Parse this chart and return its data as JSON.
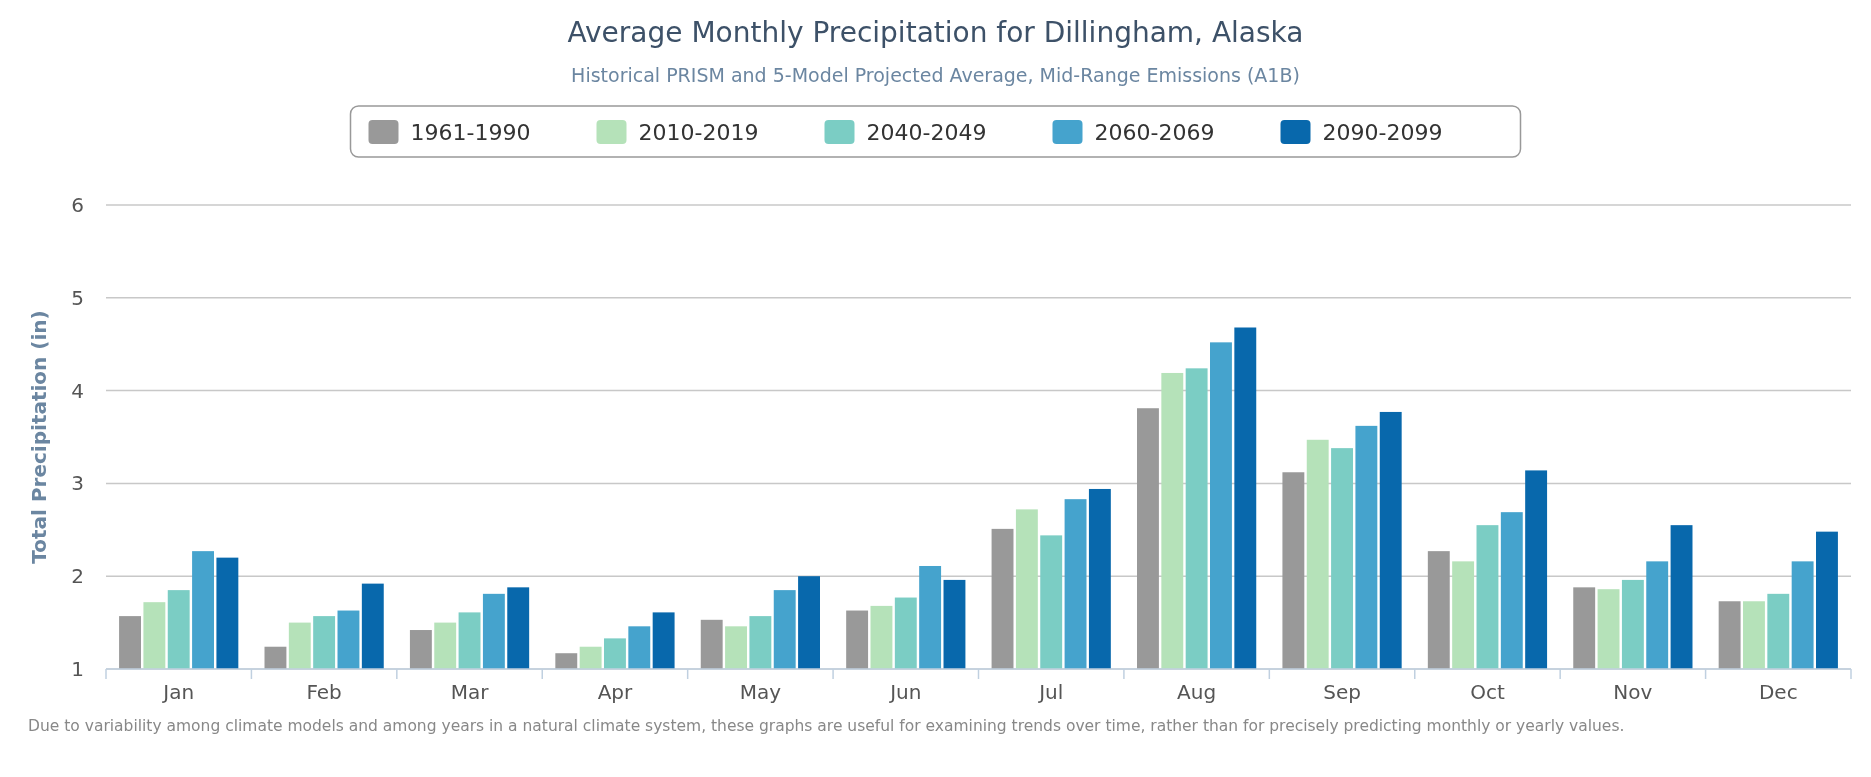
{
  "chart_data": {
    "type": "bar",
    "title": "Average Monthly Precipitation for Dillingham, Alaska",
    "subtitle": "Historical PRISM and 5-Model Projected Average, Mid-Range Emissions (A1B)",
    "ylabel": "Total Precipitation (in)",
    "categories": [
      "Jan",
      "Feb",
      "Mar",
      "Apr",
      "May",
      "Jun",
      "Jul",
      "Aug",
      "Sep",
      "Oct",
      "Nov",
      "Dec"
    ],
    "series": [
      {
        "name": "1961-1990",
        "color": "#999999",
        "values": [
          1.57,
          1.24,
          1.42,
          1.17,
          1.53,
          1.63,
          2.51,
          3.81,
          3.12,
          2.27,
          1.88,
          1.73
        ]
      },
      {
        "name": "2010-2019",
        "color": "#b5e2b9",
        "values": [
          1.72,
          1.5,
          1.5,
          1.24,
          1.46,
          1.68,
          2.72,
          4.19,
          3.47,
          2.16,
          1.86,
          1.73
        ]
      },
      {
        "name": "2040-2049",
        "color": "#7bcdc4",
        "values": [
          1.85,
          1.57,
          1.61,
          1.33,
          1.57,
          1.77,
          2.44,
          4.24,
          3.38,
          2.55,
          1.96,
          1.81
        ]
      },
      {
        "name": "2060-2069",
        "color": "#45a3cd",
        "values": [
          2.27,
          1.63,
          1.81,
          1.46,
          1.85,
          2.11,
          2.83,
          4.52,
          3.62,
          2.69,
          2.16,
          2.16
        ]
      },
      {
        "name": "2090-2099",
        "color": "#0868ac",
        "values": [
          2.2,
          1.92,
          1.88,
          1.61,
          2.0,
          1.96,
          2.94,
          4.68,
          3.77,
          3.14,
          2.55,
          2.48
        ]
      }
    ],
    "ylim": [
      1,
      6
    ],
    "yticks": [
      1,
      2,
      3,
      4,
      5,
      6
    ],
    "grid": "y",
    "legend": "top",
    "annotations": [
      "Due to variability among climate models and among years in a natural climate system, these graphs are useful for examining trends over time, rather than for precisely predicting monthly or yearly values."
    ]
  }
}
